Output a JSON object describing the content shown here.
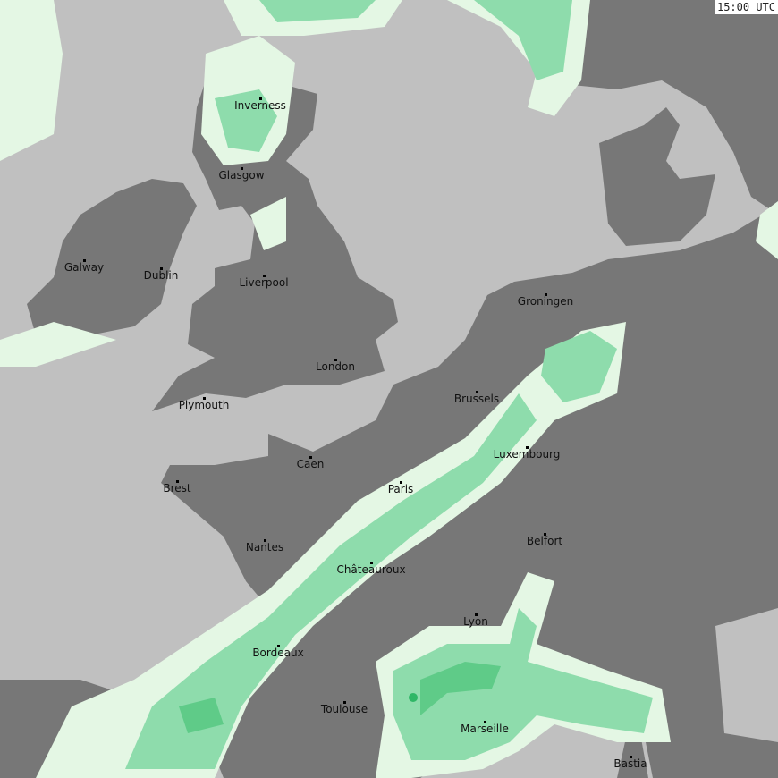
{
  "time_label": "15:00 UTC",
  "colors": {
    "sea": "#c0c0c0",
    "land": "#777777",
    "precip_light": "#e4f7e4",
    "precip_moderate": "#8edcac",
    "precip_heavy": "#5fcb88",
    "precip_very_heavy": "#2fb766",
    "borders": "#5a5a5a"
  },
  "cities": [
    {
      "name": "Inverness"
    },
    {
      "name": "Glasgow"
    },
    {
      "name": "Galway"
    },
    {
      "name": "Dublin"
    },
    {
      "name": "Liverpool"
    },
    {
      "name": "London"
    },
    {
      "name": "Plymouth"
    },
    {
      "name": "Groningen"
    },
    {
      "name": "Brussels"
    },
    {
      "name": "Luxembourg"
    },
    {
      "name": "Caen"
    },
    {
      "name": "Paris"
    },
    {
      "name": "Brest"
    },
    {
      "name": "Nantes"
    },
    {
      "name": "Belfort"
    },
    {
      "name": "Châteauroux"
    },
    {
      "name": "Lyon"
    },
    {
      "name": "Bordeaux"
    },
    {
      "name": "Toulouse"
    },
    {
      "name": "Marseille"
    },
    {
      "name": "Bastia"
    }
  ]
}
